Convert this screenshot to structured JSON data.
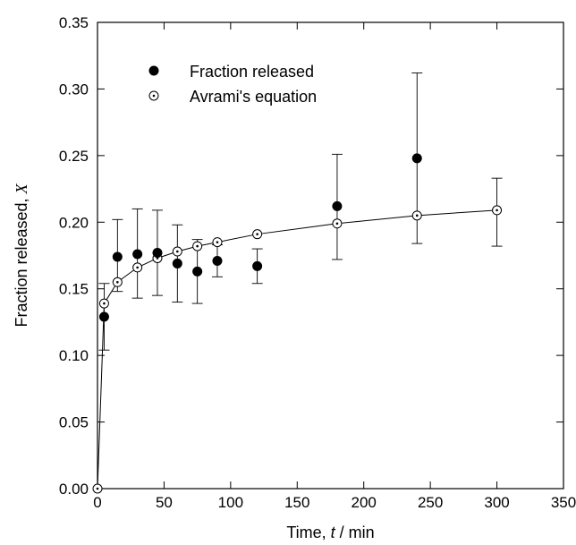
{
  "chart_data": {
    "type": "scatter",
    "xlabel_pre": "Time, ",
    "xlabel_var": "t",
    "xlabel_post": " / min",
    "ylabel_pre": "Fraction released, ",
    "ylabel_var": "X",
    "xlim": [
      0,
      350
    ],
    "ylim": [
      0,
      0.35
    ],
    "xticks": [
      0,
      50,
      100,
      150,
      200,
      250,
      300,
      350
    ],
    "xtick_labels": [
      "0",
      "50",
      "100",
      "150",
      "200",
      "250",
      "300",
      "350"
    ],
    "yticks": [
      0,
      0.05,
      0.1,
      0.15,
      0.2,
      0.25,
      0.3,
      0.35
    ],
    "ytick_labels": [
      "0.00",
      "0.05",
      "0.10",
      "0.15",
      "0.20",
      "0.25",
      "0.30",
      "0.35"
    ],
    "legend_position": "top-left",
    "series": [
      {
        "name": "Fraction released",
        "marker": "filled-circle",
        "x": [
          5,
          15,
          30,
          45,
          60,
          75,
          90,
          120,
          180,
          240
        ],
        "y": [
          0.129,
          0.174,
          0.176,
          0.177,
          0.169,
          0.163,
          0.171,
          0.167,
          0.212,
          0.248
        ],
        "err_low": [
          0.025,
          0.026,
          0.033,
          0.032,
          0.029,
          0.024,
          0.012,
          0.013,
          0.04,
          0.064
        ],
        "err_high": [
          0.025,
          0.028,
          0.034,
          0.032,
          0.029,
          0.024,
          0.012,
          0.013,
          0.039,
          0.064
        ]
      },
      {
        "name": "Avrami's equation",
        "marker": "open-circle-dot",
        "line": true,
        "x": [
          0,
          5,
          15,
          30,
          45,
          60,
          75,
          90,
          120,
          180,
          240,
          300
        ],
        "y": [
          0.0,
          0.139,
          0.155,
          0.166,
          0.173,
          0.178,
          0.182,
          0.185,
          0.191,
          0.199,
          0.205,
          0.209
        ],
        "err_index": 11,
        "err_low": 0.027,
        "err_high": 0.024
      }
    ]
  }
}
